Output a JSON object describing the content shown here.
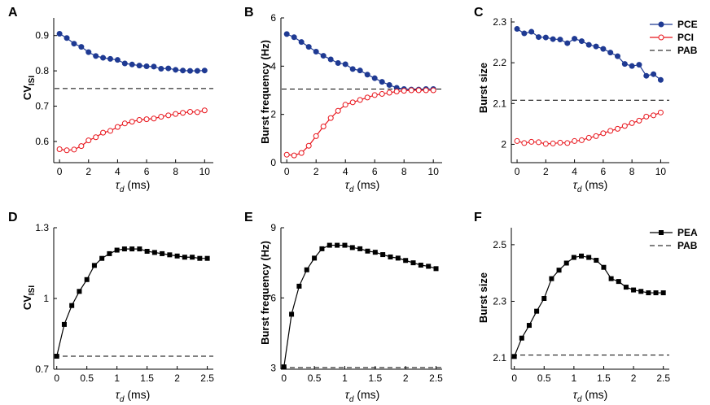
{
  "colors": {
    "pce": "#1f3a93",
    "pci": "#e8141b",
    "pab": "#000000",
    "pea": "#000000",
    "axis": "#000000"
  },
  "legend_top": {
    "pce": "PCE",
    "pci": "PCI",
    "pab": "PAB"
  },
  "legend_bottom": {
    "pea": "PEA",
    "pab": "PAB"
  },
  "chart_data": [
    {
      "id": "A",
      "type": "line",
      "letter": "A",
      "ylabel_main": "CV",
      "ylabel_sub": "ISI",
      "xlabel_tau": "τ",
      "xlabel_sub": "d",
      "xlabel_unit": " (ms)",
      "xlim": [
        -0.4,
        10.6
      ],
      "ylim": [
        0.54,
        0.95
      ],
      "xticks": [
        0,
        2,
        4,
        6,
        8,
        10
      ],
      "xtick_labels": [
        "0",
        "2",
        "4",
        "6",
        "8",
        "10"
      ],
      "yticks": [
        0.6,
        0.7,
        0.8,
        0.9
      ],
      "ytick_labels": [
        "0.6",
        "0.7",
        "0.8",
        "0.9"
      ],
      "x": [
        0,
        0.5,
        1,
        1.5,
        2,
        2.5,
        3,
        3.5,
        4,
        4.5,
        5,
        5.5,
        6,
        6.5,
        7,
        7.5,
        8,
        8.5,
        9,
        9.5,
        10
      ],
      "series": [
        {
          "name": "PCE",
          "marker": "filled-circle",
          "values": [
            0.905,
            0.893,
            0.877,
            0.868,
            0.853,
            0.842,
            0.837,
            0.834,
            0.831,
            0.821,
            0.818,
            0.815,
            0.813,
            0.812,
            0.806,
            0.807,
            0.803,
            0.801,
            0.8,
            0.8,
            0.801
          ]
        },
        {
          "name": "PCI",
          "marker": "open-circle",
          "values": [
            0.578,
            0.575,
            0.577,
            0.587,
            0.603,
            0.612,
            0.625,
            0.63,
            0.641,
            0.651,
            0.656,
            0.661,
            0.663,
            0.665,
            0.67,
            0.674,
            0.678,
            0.681,
            0.684,
            0.683,
            0.688
          ]
        }
      ],
      "hline": {
        "name": "PAB",
        "value": 0.75
      }
    },
    {
      "id": "B",
      "type": "line",
      "letter": "B",
      "ylabel_main": "Burst frequency (Hz)",
      "ylabel_sub": "",
      "xlabel_tau": "τ",
      "xlabel_sub": "d",
      "xlabel_unit": " (ms)",
      "xlim": [
        -0.4,
        10.6
      ],
      "ylim": [
        0,
        6
      ],
      "xticks": [
        0,
        2,
        4,
        6,
        8,
        10
      ],
      "xtick_labels": [
        "0",
        "2",
        "4",
        "6",
        "8",
        "10"
      ],
      "yticks": [
        0,
        2,
        4,
        6
      ],
      "ytick_labels": [
        "0",
        "2",
        "4",
        "6"
      ],
      "x": [
        0,
        0.5,
        1,
        1.5,
        2,
        2.5,
        3,
        3.5,
        4,
        4.5,
        5,
        5.5,
        6,
        6.5,
        7,
        7.5,
        8,
        8.5,
        9,
        9.5,
        10
      ],
      "series": [
        {
          "name": "PCE",
          "marker": "filled-circle",
          "values": [
            5.33,
            5.2,
            5.0,
            4.8,
            4.6,
            4.43,
            4.28,
            4.13,
            4.08,
            3.88,
            3.82,
            3.65,
            3.5,
            3.35,
            3.22,
            3.1,
            3.05,
            3.03,
            3.03,
            3.05,
            3.05
          ]
        },
        {
          "name": "PCI",
          "marker": "open-circle",
          "values": [
            0.33,
            0.3,
            0.4,
            0.7,
            1.1,
            1.5,
            1.85,
            2.15,
            2.4,
            2.5,
            2.6,
            2.7,
            2.8,
            2.85,
            2.9,
            2.95,
            2.98,
            3.0,
            3.0,
            3.0,
            3.0
          ]
        }
      ],
      "hline": {
        "name": "PAB",
        "value": 3.05
      }
    },
    {
      "id": "C",
      "type": "line",
      "letter": "C",
      "ylabel_main": "Burst size",
      "ylabel_sub": "",
      "xlabel_tau": "τ",
      "xlabel_sub": "d",
      "xlabel_unit": " (ms)",
      "xlim": [
        -0.4,
        10.6
      ],
      "ylim": [
        1.955,
        2.31
      ],
      "xticks": [
        0,
        2,
        4,
        6,
        8,
        10
      ],
      "xtick_labels": [
        "0",
        "2",
        "4",
        "6",
        "8",
        "10"
      ],
      "yticks": [
        2.0,
        2.1,
        2.2,
        2.3
      ],
      "ytick_labels": [
        "2",
        "2.1",
        "2.2",
        "2.3"
      ],
      "x": [
        0,
        0.5,
        1,
        1.5,
        2,
        2.5,
        3,
        3.5,
        4,
        4.5,
        5,
        5.5,
        6,
        6.5,
        7,
        7.5,
        8,
        8.5,
        9,
        9.5,
        10
      ],
      "series": [
        {
          "name": "PCE",
          "marker": "filled-circle",
          "values": [
            2.283,
            2.272,
            2.276,
            2.263,
            2.262,
            2.258,
            2.257,
            2.248,
            2.259,
            2.253,
            2.244,
            2.24,
            2.234,
            2.225,
            2.216,
            2.197,
            2.192,
            2.195,
            2.168,
            2.172,
            2.158
          ]
        },
        {
          "name": "PCI",
          "marker": "open-circle",
          "values": [
            2.008,
            2.003,
            2.006,
            2.005,
            2.001,
            2.002,
            2.004,
            2.003,
            2.008,
            2.01,
            2.016,
            2.02,
            2.027,
            2.033,
            2.038,
            2.045,
            2.052,
            2.058,
            2.068,
            2.071,
            2.078
          ]
        }
      ],
      "hline": {
        "name": "PAB",
        "value": 2.108
      }
    },
    {
      "id": "D",
      "type": "line",
      "letter": "D",
      "ylabel_main": "CV",
      "ylabel_sub": "ISI",
      "xlabel_tau": "τ",
      "xlabel_sub": "d",
      "xlabel_unit": " (ms)",
      "xlim": [
        -0.05,
        2.6
      ],
      "ylim": [
        0.7,
        1.3
      ],
      "xticks": [
        0,
        0.5,
        1,
        1.5,
        2,
        2.5
      ],
      "xtick_labels": [
        "0",
        "0.5",
        "1",
        "1.5",
        "2",
        "2.5"
      ],
      "yticks": [
        0.7,
        1.0,
        1.3
      ],
      "ytick_labels": [
        "0.7",
        "1",
        "1.3"
      ],
      "x": [
        0,
        0.125,
        0.25,
        0.375,
        0.5,
        0.625,
        0.75,
        0.875,
        1,
        1.125,
        1.25,
        1.375,
        1.5,
        1.625,
        1.75,
        1.875,
        2,
        2.125,
        2.25,
        2.375,
        2.5
      ],
      "series": [
        {
          "name": "PEA",
          "marker": "filled-square",
          "values": [
            0.755,
            0.89,
            0.97,
            1.03,
            1.08,
            1.14,
            1.17,
            1.19,
            1.205,
            1.21,
            1.21,
            1.21,
            1.2,
            1.195,
            1.19,
            1.185,
            1.18,
            1.175,
            1.175,
            1.17,
            1.17
          ]
        }
      ],
      "hline": {
        "name": "PAB",
        "value": 0.755
      }
    },
    {
      "id": "E",
      "type": "line",
      "letter": "E",
      "ylabel_main": "Burst frequency (Hz)",
      "ylabel_sub": "",
      "xlabel_tau": "τ",
      "xlabel_sub": "d",
      "xlabel_unit": " (ms)",
      "xlim": [
        -0.05,
        2.6
      ],
      "ylim": [
        2.95,
        9
      ],
      "xticks": [
        0,
        0.5,
        1,
        1.5,
        2,
        2.5
      ],
      "xtick_labels": [
        "0",
        "0.5",
        "1",
        "1.5",
        "2",
        "2.5"
      ],
      "yticks": [
        3,
        6,
        9
      ],
      "ytick_labels": [
        "3",
        "6",
        "9"
      ],
      "x": [
        0,
        0.125,
        0.25,
        0.375,
        0.5,
        0.625,
        0.75,
        0.875,
        1,
        1.125,
        1.25,
        1.375,
        1.5,
        1.625,
        1.75,
        1.875,
        2,
        2.125,
        2.25,
        2.375,
        2.5
      ],
      "series": [
        {
          "name": "PEA",
          "marker": "filled-square",
          "values": [
            3.05,
            5.3,
            6.5,
            7.2,
            7.7,
            8.1,
            8.25,
            8.25,
            8.25,
            8.15,
            8.1,
            8.0,
            7.95,
            7.85,
            7.75,
            7.7,
            7.6,
            7.5,
            7.4,
            7.35,
            7.25
          ]
        }
      ],
      "hline": {
        "name": "PAB",
        "value": 3.02
      }
    },
    {
      "id": "F",
      "type": "line",
      "letter": "F",
      "ylabel_main": "Burst size",
      "ylabel_sub": "",
      "xlabel_tau": "τ",
      "xlabel_sub": "d",
      "xlabel_unit": " (ms)",
      "xlim": [
        -0.05,
        2.6
      ],
      "ylim": [
        2.06,
        2.56
      ],
      "xticks": [
        0,
        0.5,
        1,
        1.5,
        2,
        2.5
      ],
      "xtick_labels": [
        "0",
        "0.5",
        "1",
        "1.5",
        "2",
        "2.5"
      ],
      "yticks": [
        2.1,
        2.3,
        2.5
      ],
      "ytick_labels": [
        "2.1",
        "2.3",
        "2.5"
      ],
      "x": [
        0,
        0.125,
        0.25,
        0.375,
        0.5,
        0.625,
        0.75,
        0.875,
        1,
        1.125,
        1.25,
        1.375,
        1.5,
        1.625,
        1.75,
        1.875,
        2,
        2.125,
        2.25,
        2.375,
        2.5
      ],
      "series": [
        {
          "name": "PEA",
          "marker": "filled-square",
          "values": [
            2.105,
            2.17,
            2.215,
            2.265,
            2.31,
            2.38,
            2.41,
            2.435,
            2.455,
            2.46,
            2.455,
            2.445,
            2.42,
            2.38,
            2.37,
            2.35,
            2.34,
            2.335,
            2.33,
            2.33,
            2.33
          ]
        }
      ],
      "hline": {
        "name": "PAB",
        "value": 2.11
      }
    }
  ]
}
